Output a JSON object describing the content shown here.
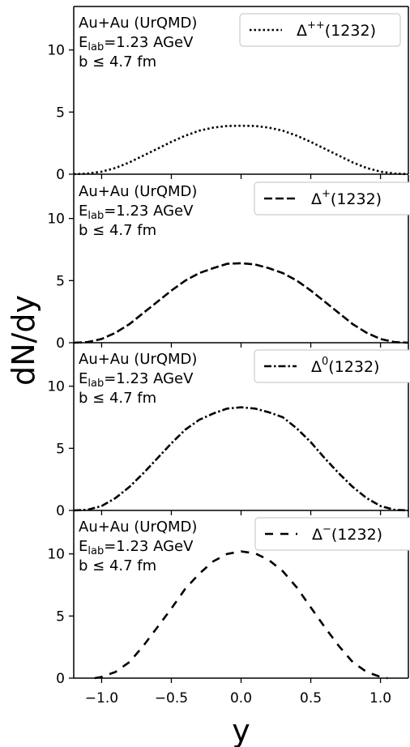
{
  "chart_data": {
    "type": "line",
    "ylabel": "dN/dy",
    "xlabel": "y",
    "xlim": [
      -1.2,
      1.2
    ],
    "ylim": [
      0,
      13.5
    ],
    "xticks": [
      "−1.0",
      "−0.5",
      "0.0",
      "0.5",
      "1.0"
    ],
    "xtick_values": [
      -1.0,
      -0.5,
      0.0,
      0.5,
      1.0
    ],
    "yticks": [
      "0",
      "5",
      "10"
    ],
    "ytick_values": [
      0,
      5,
      10
    ],
    "annotation": {
      "line1": "Au+Au (UrQMD)",
      "line2_main": "E",
      "line2_sub": "lab",
      "line2_rest": "=1.23 AGeV",
      "line3": "b ≤ 4.7 fm"
    },
    "panels": [
      {
        "legend_base": "Δ",
        "legend_sup": "++",
        "legend_rest": "(1232)",
        "linestyle": "dotted",
        "x": [
          -1.2,
          -1.1,
          -1.0,
          -0.9,
          -0.8,
          -0.7,
          -0.6,
          -0.5,
          -0.4,
          -0.3,
          -0.2,
          -0.1,
          0.0,
          0.1,
          0.2,
          0.3,
          0.4,
          0.5,
          0.6,
          0.7,
          0.8,
          0.9,
          1.0,
          1.1,
          1.2
        ],
        "y": [
          0.0,
          0.05,
          0.2,
          0.5,
          0.95,
          1.5,
          2.05,
          2.6,
          3.1,
          3.5,
          3.75,
          3.88,
          3.9,
          3.88,
          3.75,
          3.5,
          3.1,
          2.6,
          2.05,
          1.5,
          0.95,
          0.5,
          0.2,
          0.05,
          0.0
        ]
      },
      {
        "legend_base": "Δ",
        "legend_sup": "+",
        "legend_rest": "(1232)",
        "linestyle": "dashed",
        "x": [
          -1.2,
          -1.1,
          -1.0,
          -0.9,
          -0.8,
          -0.7,
          -0.6,
          -0.5,
          -0.4,
          -0.3,
          -0.2,
          -0.1,
          0.0,
          0.1,
          0.2,
          0.3,
          0.4,
          0.5,
          0.6,
          0.7,
          0.8,
          0.9,
          1.0,
          1.1,
          1.2
        ],
        "y": [
          0.0,
          0.05,
          0.3,
          0.8,
          1.5,
          2.4,
          3.3,
          4.2,
          5.0,
          5.6,
          6.0,
          6.35,
          6.4,
          6.3,
          6.0,
          5.6,
          5.0,
          4.2,
          3.3,
          2.4,
          1.5,
          0.8,
          0.3,
          0.05,
          0.0
        ]
      },
      {
        "legend_base": "Δ",
        "legend_sup": "0",
        "legend_rest": "(1232)",
        "linestyle": "dashdot",
        "x": [
          -1.2,
          -1.1,
          -1.0,
          -0.9,
          -0.8,
          -0.7,
          -0.6,
          -0.5,
          -0.4,
          -0.3,
          -0.2,
          -0.1,
          0.0,
          0.1,
          0.2,
          0.3,
          0.4,
          0.5,
          0.6,
          0.7,
          0.8,
          0.9,
          1.0,
          1.1,
          1.2
        ],
        "y": [
          0.0,
          0.05,
          0.35,
          1.0,
          1.9,
          3.0,
          4.2,
          5.4,
          6.5,
          7.3,
          7.8,
          8.2,
          8.3,
          8.2,
          7.9,
          7.5,
          6.6,
          5.5,
          4.2,
          3.0,
          1.9,
          1.0,
          0.35,
          0.05,
          0.0
        ]
      },
      {
        "legend_base": "Δ",
        "legend_sup": "−",
        "legend_rest": "(1232)",
        "linestyle": "loosedash",
        "x": [
          -1.05,
          -1.0,
          -0.9,
          -0.8,
          -0.7,
          -0.6,
          -0.5,
          -0.4,
          -0.3,
          -0.2,
          -0.1,
          0.0,
          0.1,
          0.2,
          0.3,
          0.4,
          0.5,
          0.6,
          0.7,
          0.8,
          0.9,
          1.0,
          1.05
        ],
        "y": [
          0.0,
          0.1,
          0.5,
          1.3,
          2.6,
          4.1,
          5.6,
          7.2,
          8.4,
          9.4,
          10.0,
          10.2,
          10.05,
          9.5,
          8.6,
          7.3,
          5.7,
          4.1,
          2.6,
          1.3,
          0.5,
          0.1,
          0.0
        ]
      }
    ]
  }
}
